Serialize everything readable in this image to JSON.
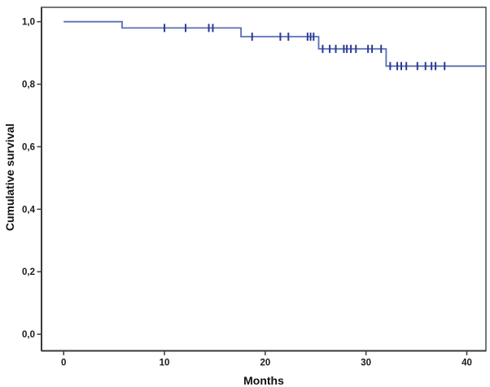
{
  "page": {
    "background": "#ffffff"
  },
  "chart_data": {
    "type": "line",
    "subtype": "kaplan-meier-survival-step",
    "title": "",
    "xlabel": "Months",
    "ylabel": "Cumulative survival",
    "grid": false,
    "legend": false,
    "xlim": [
      -2.2,
      41.9
    ],
    "ylim": [
      -0.053,
      1.046
    ],
    "x_ticks": {
      "values": [
        0,
        10,
        20,
        30,
        40
      ],
      "labels": [
        "0",
        "10",
        "20",
        "30",
        "40"
      ]
    },
    "y_ticks": {
      "values": [
        0.0,
        0.2,
        0.4,
        0.6,
        0.8,
        1.0
      ],
      "labels": [
        "0,0",
        "0,2",
        "0,4",
        "0,6",
        "0,8",
        "1,0"
      ]
    },
    "colors": {
      "line": "#5a6eb4",
      "censor": "#2b3a99",
      "axis": "#3a3a3a",
      "frame": "#555555",
      "text": "#1a1a1a"
    },
    "series": [
      {
        "name": "Cumulative survival",
        "step_points": [
          [
            0.0,
            1.0
          ],
          [
            5.8,
            1.0
          ],
          [
            5.8,
            0.98
          ],
          [
            17.6,
            0.98
          ],
          [
            17.6,
            0.952
          ],
          [
            25.3,
            0.952
          ],
          [
            25.3,
            0.913
          ],
          [
            32.0,
            0.913
          ],
          [
            32.0,
            0.858
          ],
          [
            41.9,
            0.858
          ]
        ]
      }
    ],
    "censor_points": [
      [
        10.0,
        0.98
      ],
      [
        12.1,
        0.98
      ],
      [
        14.4,
        0.98
      ],
      [
        14.8,
        0.98
      ],
      [
        18.7,
        0.952
      ],
      [
        21.5,
        0.952
      ],
      [
        22.3,
        0.952
      ],
      [
        24.2,
        0.952
      ],
      [
        24.5,
        0.952
      ],
      [
        24.8,
        0.952
      ],
      [
        25.7,
        0.913
      ],
      [
        26.4,
        0.913
      ],
      [
        27.0,
        0.913
      ],
      [
        27.8,
        0.913
      ],
      [
        28.1,
        0.913
      ],
      [
        28.5,
        0.913
      ],
      [
        29.0,
        0.913
      ],
      [
        30.2,
        0.913
      ],
      [
        30.6,
        0.913
      ],
      [
        31.5,
        0.913
      ],
      [
        32.4,
        0.858
      ],
      [
        33.1,
        0.858
      ],
      [
        33.5,
        0.858
      ],
      [
        34.0,
        0.858
      ],
      [
        35.1,
        0.858
      ],
      [
        35.9,
        0.858
      ],
      [
        36.5,
        0.858
      ],
      [
        36.9,
        0.858
      ],
      [
        37.8,
        0.858
      ]
    ]
  }
}
